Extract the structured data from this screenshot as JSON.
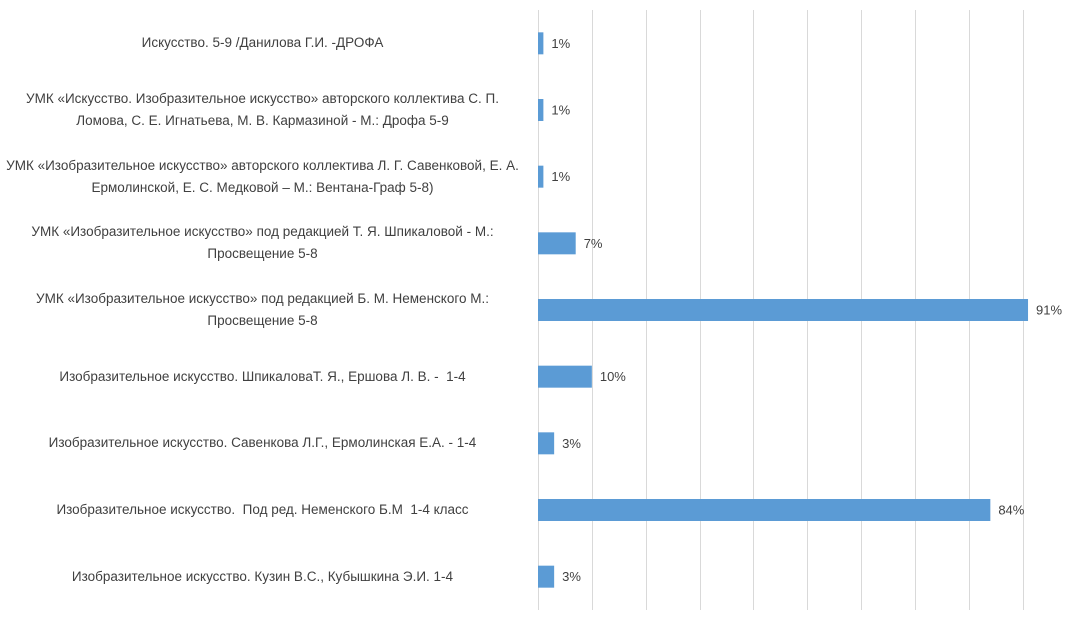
{
  "chart_data": {
    "type": "bar",
    "orientation": "horizontal",
    "categories": [
      "Искусство. 5-9 /Данилова Г.И. -ДРОФА",
      "УМК «Искусство. Изобразительное искусство» авторского коллектива С. П. Ломова, С. Е. Игнатьева, М. В. Кармазиной - М.: Дрофа 5-9",
      "УМК «Изобразительное искусство» авторского коллектива Л. Г. Савенковой, Е. А. Ермолинской, Е. С. Медковой – М.: Вентана-Граф 5-8)",
      "УМК «Изобразительное искусство» под редакцией Т. Я. Шпикаловой - М.: Просвещение 5-8",
      "УМК «Изобразительное искусство» под редакцией Б. М. Неменского М.: Просвещение 5-8",
      "Изобразительное искусство. ШпикаловаТ. Я., Ершова Л. В. -  1-4",
      "Изобразительное искусство. Савенкова Л.Г., Ермолинская Е.А. - 1-4",
      "Изобразительное искусство.  Под ред. Неменского Б.М  1-4 класс",
      "Изобразительное искусство. Кузин В.С., Кубышкина Э.И. 1-4"
    ],
    "values": [
      1,
      1,
      1,
      7,
      91,
      10,
      3,
      84,
      3
    ],
    "value_labels": [
      "1%",
      "1%",
      "1%",
      "7%",
      "91%",
      "10%",
      "3%",
      "84%",
      "3%"
    ],
    "color": "#5b9bd5",
    "xlim": [
      0,
      100
    ],
    "xticks": [
      0,
      10,
      20,
      30,
      40,
      50,
      60,
      70,
      80,
      90
    ],
    "grid": true
  }
}
